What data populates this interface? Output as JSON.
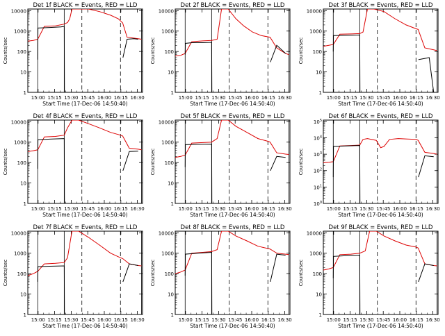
{
  "figure": {
    "background": "#ffffff",
    "events_color": "#000000",
    "lld_color": "#dd0000"
  },
  "chart_data": [
    {
      "type": "line",
      "title": "Det 1f BLACK = Events, RED = LLD",
      "xlabel": "Start Time (17-Dec-06 14:50:40)",
      "ylabel": "Counts/sec",
      "y_scale": "log",
      "ylim": [
        1,
        12000
      ],
      "y_ticks": [
        "1",
        "10",
        "100",
        "1000",
        "10000"
      ],
      "x_ticks": [
        "15:00",
        "15:15",
        "15:30",
        "15:45",
        "16:00",
        "16:15",
        "16:30"
      ],
      "xlim_minutes": [
        0,
        104
      ],
      "solid_vlines_min": [
        9,
        33,
        103
      ],
      "dashed_vlines_min": [
        49,
        84
      ],
      "series": [
        {
          "name": "Events",
          "color": "#000000",
          "x": [
            0,
            9,
            9.2,
            20,
            30,
            33,
            33.2,
            37,
            38,
            44,
            50,
            60,
            70,
            80,
            86,
            86.2,
            90,
            96,
            100
          ],
          "y": [
            null,
            40,
            1400,
            1500,
            1600,
            1700,
            1,
            null,
            null,
            null,
            null,
            null,
            null,
            null,
            null,
            50,
            400,
            420,
            400
          ]
        },
        {
          "name": "LLD",
          "color": "#dd0000",
          "x": [
            0,
            5,
            9,
            15,
            25,
            33,
            36,
            38,
            40,
            45,
            55,
            65,
            75,
            82,
            86,
            90,
            96,
            100,
            103
          ],
          "y": [
            320,
            350,
            400,
            1700,
            1800,
            2200,
            2600,
            4000,
            12000,
            12000,
            12000,
            9000,
            6000,
            4000,
            2500,
            500,
            450,
            420,
            400
          ]
        }
      ]
    },
    {
      "type": "line",
      "title": "Det 2f BLACK = Events, RED = LLD",
      "xlabel": "Start Time (17-Dec-06 14:50:40)",
      "ylabel": "Counts/sec",
      "y_scale": "log",
      "ylim": [
        1,
        12000
      ],
      "y_ticks": [
        "1",
        "10",
        "100",
        "1000",
        "10000"
      ],
      "x_ticks": [
        "15:00",
        "15:15",
        "15:30",
        "15:45",
        "16:00",
        "16:15",
        "16:30"
      ],
      "xlim_minutes": [
        0,
        104
      ],
      "solid_vlines_min": [
        9,
        33,
        103
      ],
      "dashed_vlines_min": [
        49,
        84
      ],
      "series": [
        {
          "name": "Events",
          "color": "#000000",
          "x": [
            0,
            9,
            9.2,
            15,
            25,
            33,
            33.2,
            86,
            86.2,
            92,
            100
          ],
          "y": [
            null,
            70,
            250,
            270,
            270,
            280,
            1,
            null,
            30,
            200,
            80
          ]
        },
        {
          "name": "LLD",
          "color": "#dd0000",
          "x": [
            0,
            5,
            9,
            15,
            25,
            33,
            38,
            42,
            48,
            55,
            62,
            70,
            78,
            86,
            92,
            100,
            103
          ],
          "y": [
            60,
            65,
            80,
            300,
            330,
            350,
            400,
            12000,
            12000,
            4000,
            1800,
            900,
            600,
            500,
            150,
            80,
            70
          ]
        }
      ]
    },
    {
      "type": "line",
      "title": "Det 3f BLACK = Events, RED = LLD",
      "xlabel": "Start Time (17-Dec-06 14:50:40)",
      "ylabel": "Counts/sec",
      "y_scale": "log",
      "ylim": [
        1,
        12000
      ],
      "y_ticks": [
        "1",
        "10",
        "100",
        "1000",
        "10000"
      ],
      "x_ticks": [
        "15:00",
        "15:15",
        "15:30",
        "15:45",
        "16:00",
        "16:15",
        "16:30"
      ],
      "xlim_minutes": [
        0,
        104
      ],
      "solid_vlines_min": [
        9,
        33,
        103
      ],
      "dashed_vlines_min": [
        49,
        84
      ],
      "series": [
        {
          "name": "Events",
          "color": "#000000",
          "x": [
            0,
            9,
            9.2,
            20,
            33,
            33.2,
            86,
            86.2,
            96,
            100
          ],
          "y": [
            null,
            100,
            600,
            620,
            640,
            1,
            null,
            40,
            50,
            1
          ]
        },
        {
          "name": "LLD",
          "color": "#dd0000",
          "x": [
            0,
            5,
            9,
            15,
            25,
            33,
            36,
            40,
            46,
            55,
            65,
            75,
            84,
            86,
            92,
            100,
            103
          ],
          "y": [
            180,
            200,
            220,
            700,
            720,
            750,
            900,
            12000,
            12000,
            9000,
            4000,
            2000,
            1300,
            1200,
            150,
            120,
            110
          ]
        }
      ]
    },
    {
      "type": "line",
      "title": "Det 4f BLACK = Events, RED = LLD",
      "xlabel": "Start Time (17-Dec-06 14:50:40)",
      "ylabel": "Counts/sec",
      "y_scale": "log",
      "ylim": [
        1,
        12000
      ],
      "y_ticks": [
        "1",
        "10",
        "100",
        "1000",
        "10000"
      ],
      "x_ticks": [
        "15:00",
        "15:15",
        "15:30",
        "15:45",
        "16:00",
        "16:15",
        "16:30"
      ],
      "xlim_minutes": [
        0,
        104
      ],
      "solid_vlines_min": [
        9,
        33,
        103
      ],
      "dashed_vlines_min": [
        49,
        84
      ],
      "series": [
        {
          "name": "Events",
          "color": "#000000",
          "x": [
            0,
            9,
            9.2,
            20,
            33,
            33.2,
            86,
            86.2,
            92,
            100
          ],
          "y": [
            null,
            50,
            1300,
            1400,
            1500,
            1,
            null,
            40,
            350,
            360
          ]
        },
        {
          "name": "LLD",
          "color": "#dd0000",
          "x": [
            0,
            5,
            9,
            15,
            25,
            33,
            36,
            40,
            46,
            55,
            65,
            75,
            84,
            86,
            92,
            100,
            103
          ],
          "y": [
            350,
            380,
            420,
            1800,
            1900,
            2200,
            5000,
            12000,
            12000,
            8000,
            5000,
            3000,
            2200,
            2000,
            500,
            450,
            420
          ]
        }
      ]
    },
    {
      "type": "line",
      "title": "Det 5f BLACK = Events, RED = LLD",
      "xlabel": "Start Time (17-Dec-06 14:50:40)",
      "ylabel": "Counts/sec",
      "y_scale": "log",
      "ylim": [
        1,
        12000
      ],
      "y_ticks": [
        "1",
        "10",
        "100",
        "1000",
        "10000"
      ],
      "x_ticks": [
        "15:00",
        "15:15",
        "15:30",
        "15:45",
        "16:00",
        "16:15",
        "16:30"
      ],
      "xlim_minutes": [
        0,
        104
      ],
      "solid_vlines_min": [
        9,
        33,
        103
      ],
      "dashed_vlines_min": [
        49,
        84
      ],
      "series": [
        {
          "name": "Events",
          "color": "#000000",
          "x": [
            0,
            9,
            9.2,
            20,
            33,
            33.2,
            86,
            86.2,
            92,
            100
          ],
          "y": [
            null,
            60,
            750,
            780,
            800,
            1,
            null,
            40,
            200,
            180
          ]
        },
        {
          "name": "LLD",
          "color": "#dd0000",
          "x": [
            0,
            5,
            9,
            15,
            25,
            33,
            38,
            42,
            48,
            55,
            65,
            75,
            84,
            86,
            92,
            100,
            103
          ],
          "y": [
            180,
            200,
            230,
            900,
            950,
            1000,
            1500,
            12000,
            12000,
            6000,
            3000,
            1500,
            1100,
            1000,
            300,
            260,
            250
          ]
        }
      ]
    },
    {
      "type": "line",
      "title": "Det 6f BLACK = Events, RED = LLD",
      "xlabel": "Start Time (17-Dec-06 14:50:40)",
      "ylabel": "Counts/sec",
      "y_scale": "log",
      "ylim": [
        1,
        120000
      ],
      "y_ticks": [
        "10^0",
        "10^1",
        "10^2",
        "10^3",
        "10^4",
        "10^5"
      ],
      "x_ticks": [
        "15:00",
        "15:15",
        "15:30",
        "15:45",
        "16:00",
        "16:15",
        "16:30"
      ],
      "xlim_minutes": [
        0,
        104
      ],
      "solid_vlines_min": [
        9,
        33,
        103
      ],
      "dashed_vlines_min": [
        49,
        84
      ],
      "series": [
        {
          "name": "Events",
          "color": "#000000",
          "x": [
            0,
            9,
            9.2,
            20,
            33,
            33.2,
            86,
            86.2,
            92,
            100
          ],
          "y": [
            null,
            40,
            3000,
            3200,
            3400,
            1,
            null,
            40,
            800,
            700
          ]
        },
        {
          "name": "LLD",
          "color": "#dd0000",
          "x": [
            0,
            5,
            9,
            15,
            25,
            33,
            36,
            40,
            48,
            52,
            55,
            60,
            68,
            76,
            84,
            86,
            92,
            100,
            103
          ],
          "y": [
            300,
            320,
            350,
            3200,
            3400,
            3600,
            8000,
            9000,
            7000,
            2500,
            3000,
            8000,
            9000,
            8500,
            8000,
            7000,
            1300,
            1100,
            1000
          ]
        }
      ]
    },
    {
      "type": "line",
      "title": "Det 7f BLACK = Events, RED = LLD",
      "xlabel": "Start Time (17-Dec-06 14:50:40)",
      "ylabel": "Counts/sec",
      "y_scale": "log",
      "ylim": [
        1,
        12000
      ],
      "y_ticks": [
        "1",
        "10",
        "100",
        "1000",
        "10000"
      ],
      "x_ticks": [
        "15:00",
        "15:15",
        "15:30",
        "15:45",
        "16:00",
        "16:15",
        "16:30"
      ],
      "xlim_minutes": [
        0,
        104
      ],
      "solid_vlines_min": [
        9,
        33,
        103
      ],
      "dashed_vlines_min": [
        49,
        84
      ],
      "series": [
        {
          "name": "Events",
          "color": "#000000",
          "x": [
            0,
            9,
            9.2,
            20,
            33,
            33.2,
            86,
            86.2,
            92,
            100
          ],
          "y": [
            null,
            40,
            220,
            230,
            240,
            1,
            null,
            40,
            300,
            250
          ]
        },
        {
          "name": "LLD",
          "color": "#dd0000",
          "x": [
            0,
            5,
            9,
            15,
            25,
            33,
            36,
            40,
            46,
            55,
            65,
            75,
            84,
            86,
            92,
            100,
            103
          ],
          "y": [
            80,
            100,
            130,
            300,
            320,
            350,
            600,
            12000,
            12000,
            6000,
            2500,
            1000,
            600,
            550,
            300,
            250,
            240
          ]
        }
      ]
    },
    {
      "type": "line",
      "title": "Det 8f BLACK = Events, RED = LLD",
      "xlabel": "Start Time (17-Dec-06 14:50:40)",
      "ylabel": "Counts/sec",
      "y_scale": "log",
      "ylim": [
        1,
        12000
      ],
      "y_ticks": [
        "1",
        "10",
        "100",
        "1000",
        "10000"
      ],
      "x_ticks": [
        "15:00",
        "15:15",
        "15:30",
        "15:45",
        "16:00",
        "16:15",
        "16:30"
      ],
      "xlim_minutes": [
        0,
        104
      ],
      "solid_vlines_min": [
        9,
        33,
        103
      ],
      "dashed_vlines_min": [
        49,
        84
      ],
      "series": [
        {
          "name": "Events",
          "color": "#000000",
          "x": [
            0,
            9,
            9.2,
            20,
            33,
            33.2,
            86,
            86.2,
            92,
            100
          ],
          "y": [
            null,
            80,
            900,
            1000,
            1100,
            1,
            null,
            40,
            900,
            800
          ]
        },
        {
          "name": "LLD",
          "color": "#dd0000",
          "x": [
            0,
            5,
            9,
            15,
            25,
            33,
            38,
            42,
            48,
            55,
            65,
            75,
            84,
            86,
            92,
            100,
            103
          ],
          "y": [
            100,
            120,
            150,
            1000,
            1100,
            1200,
            1500,
            12000,
            12000,
            7000,
            4000,
            2200,
            1700,
            1600,
            1000,
            900,
            850
          ]
        }
      ]
    },
    {
      "type": "line",
      "title": "Det 9f BLACK = Events, RED = LLD",
      "xlabel": "Start Time (17-Dec-06 14:50:40)",
      "ylabel": "Counts/sec",
      "y_scale": "log",
      "ylim": [
        1,
        12000
      ],
      "y_ticks": [
        "1",
        "10",
        "100",
        "1000",
        "10000"
      ],
      "x_ticks": [
        "15:00",
        "15:15",
        "15:30",
        "15:45",
        "16:00",
        "16:15",
        "16:30"
      ],
      "xlim_minutes": [
        0,
        104
      ],
      "solid_vlines_min": [
        9,
        33,
        103
      ],
      "dashed_vlines_min": [
        49,
        84
      ],
      "series": [
        {
          "name": "Events",
          "color": "#000000",
          "x": [
            0,
            9,
            9.2,
            20,
            33,
            33.2,
            86,
            86.2,
            92,
            100
          ],
          "y": [
            null,
            60,
            700,
            750,
            800,
            1,
            null,
            40,
            300,
            250
          ]
        },
        {
          "name": "LLD",
          "color": "#dd0000",
          "x": [
            0,
            5,
            9,
            15,
            25,
            33,
            38,
            42,
            48,
            55,
            65,
            75,
            84,
            86,
            92,
            100,
            103
          ],
          "y": [
            150,
            170,
            200,
            850,
            900,
            1000,
            1300,
            12000,
            12000,
            7000,
            4000,
            2500,
            2000,
            1800,
            300,
            250,
            240
          ]
        }
      ]
    }
  ]
}
